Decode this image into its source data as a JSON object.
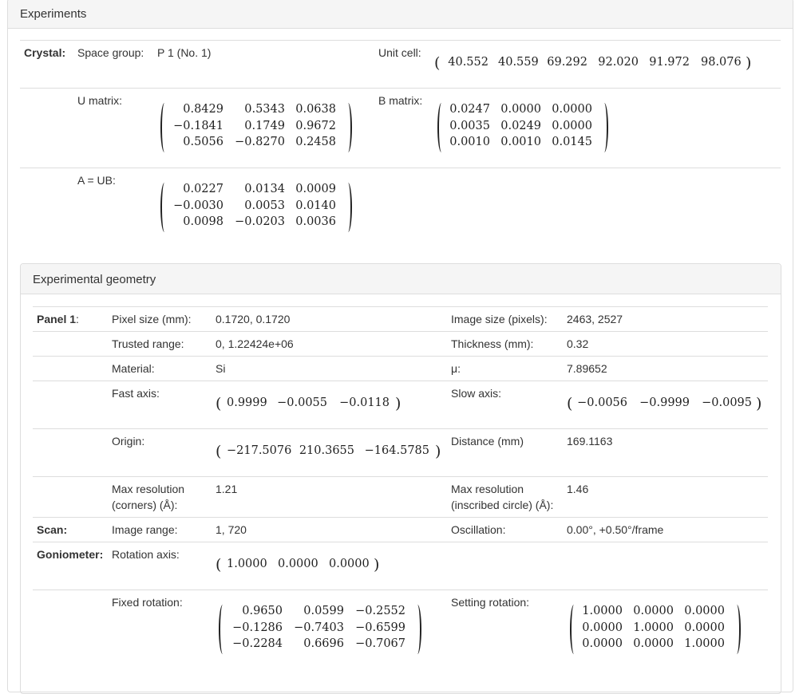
{
  "experiments_title": "Experiments",
  "crystal": {
    "label": "Crystal:",
    "space_group_label": "Space group:",
    "space_group_value": "P 1 (No. 1)",
    "unit_cell_label": "Unit cell:",
    "unit_cell": [
      "40.552",
      "40.559",
      "69.292",
      "92.020",
      "91.972",
      "98.076"
    ],
    "u_matrix_label": "U matrix:",
    "u_matrix": [
      [
        "0.8429",
        "0.5343",
        "0.0638"
      ],
      [
        "−0.1841",
        "0.1749",
        "0.9672"
      ],
      [
        "0.5056",
        "−0.8270",
        "0.2458"
      ]
    ],
    "b_matrix_label": "B matrix:",
    "b_matrix": [
      [
        "0.0247",
        "0.0000",
        "0.0000"
      ],
      [
        "0.0035",
        "0.0249",
        "0.0000"
      ],
      [
        "0.0010",
        "0.0010",
        "0.0145"
      ]
    ],
    "a_matrix_label": "A = UB:",
    "a_matrix": [
      [
        "0.0227",
        "0.0134",
        "0.0009"
      ],
      [
        "−0.0030",
        "0.0053",
        "0.0140"
      ],
      [
        "0.0098",
        "−0.0203",
        "0.0036"
      ]
    ]
  },
  "geometry": {
    "title": "Experimental geometry",
    "panel_label": "Panel 1",
    "panel_colon": ":",
    "pixel_size_label": "Pixel size (mm):",
    "pixel_size": "0.1720, 0.1720",
    "image_size_label": "Image size (pixels):",
    "image_size": "2463, 2527",
    "trusted_range_label": "Trusted range:",
    "trusted_range": "0, 1.22424e+06",
    "thickness_label": "Thickness (mm):",
    "thickness": "0.32",
    "material_label": "Material:",
    "material": "Si",
    "mu_label": "μ:",
    "mu": "7.89652",
    "fast_axis_label": "Fast axis:",
    "fast_axis": [
      "0.9999",
      "−0.0055",
      "−0.0118"
    ],
    "slow_axis_label": "Slow axis:",
    "slow_axis": [
      "−0.0056",
      "−0.9999",
      "−0.0095"
    ],
    "origin_label": "Origin:",
    "origin": [
      "−217.5076",
      "210.3655",
      "−164.5785"
    ],
    "distance_label": "Distance (mm)",
    "distance": "169.1163",
    "max_res_corners_label_1": "Max resolution",
    "max_res_corners_label_2": "(corners) (Å):",
    "max_res_corners": "1.21",
    "max_res_inscribed_label_1": "Max resolution",
    "max_res_inscribed_label_2": "(inscribed circle) (Å):",
    "max_res_inscribed": "1.46",
    "scan_label": "Scan:",
    "image_range_label": "Image range:",
    "image_range": "1, 720",
    "oscillation_label": "Oscillation:",
    "oscillation": "0.00°, +0.50°/frame",
    "goniometer_label": "Goniometer:",
    "rotation_axis_label": "Rotation axis:",
    "rotation_axis": [
      "1.0000",
      "0.0000",
      "0.0000"
    ],
    "fixed_rotation_label": "Fixed rotation:",
    "fixed_rotation": [
      [
        "0.9650",
        "0.0599",
        "−0.2552"
      ],
      [
        "−0.1286",
        "−0.7403",
        "−0.6599"
      ],
      [
        "−0.2284",
        "0.6696",
        "−0.7067"
      ]
    ],
    "setting_rotation_label": "Setting rotation:",
    "setting_rotation": [
      [
        "1.0000",
        "0.0000",
        "0.0000"
      ],
      [
        "0.0000",
        "1.0000",
        "0.0000"
      ],
      [
        "0.0000",
        "0.0000",
        "1.0000"
      ]
    ]
  }
}
